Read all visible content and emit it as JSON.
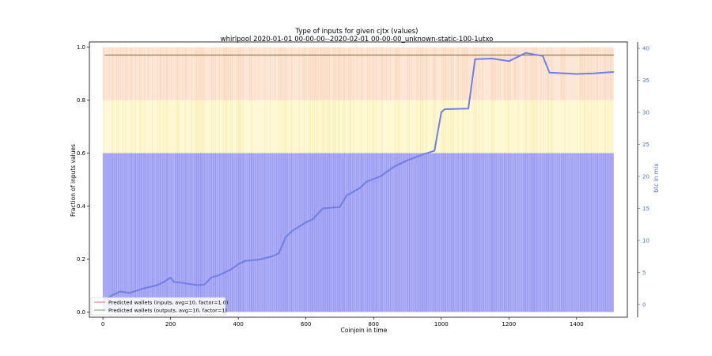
{
  "chart_data": {
    "type": "line",
    "title": "Type of inputs for given cjtx (values)",
    "subtitle": "whirlpool 2020-01-01 00-00-00--2020-02-01 00-00-00_unknown-static-100-1utxo",
    "xlabel": "Coinjoin in time",
    "ylabel_left": "Fraction of inputs values",
    "ylabel_right": "btc in mix",
    "xlim": [
      -40,
      1550
    ],
    "ylim_left": [
      -0.02,
      1.02
    ],
    "ylim_right": [
      -2,
      41
    ],
    "x_ticks": [
      0,
      200,
      400,
      600,
      800,
      1000,
      1200,
      1400
    ],
    "y_ticks_left": [
      0.0,
      0.2,
      0.4,
      0.6,
      0.8,
      1.0
    ],
    "y_ticks_right": [
      0,
      5,
      10,
      15,
      20,
      25,
      30,
      35,
      40
    ],
    "bands": [
      {
        "from": 0.0,
        "to": 0.6,
        "color": "#7777f0"
      },
      {
        "from": 0.6,
        "to": 0.8,
        "color": "#fff3b0"
      },
      {
        "from": 0.8,
        "to": 1.0,
        "color": "#f7b98c"
      }
    ],
    "x_range_bars": [
      0,
      1510
    ],
    "flat_line": {
      "value": 0.97,
      "x": [
        5,
        1510
      ],
      "color": "#8b5a2b"
    },
    "btc_in_mix": {
      "color": "#6f7fe8",
      "x": [
        0,
        30,
        50,
        80,
        120,
        160,
        180,
        200,
        210,
        230,
        280,
        300,
        320,
        340,
        380,
        400,
        420,
        460,
        500,
        520,
        540,
        560,
        600,
        620,
        650,
        700,
        720,
        760,
        780,
        820,
        860,
        900,
        950,
        980,
        1000,
        1010,
        1080,
        1090,
        1100,
        1150,
        1200,
        1250,
        1280,
        1300,
        1320,
        1400,
        1450,
        1510
      ],
      "y": [
        0.5,
        1.5,
        2.0,
        1.8,
        2.5,
        3.0,
        3.5,
        4.2,
        3.5,
        3.4,
        3.0,
        3.1,
        4.2,
        4.5,
        5.5,
        6.3,
        6.8,
        7.0,
        7.5,
        8.0,
        10.5,
        11.5,
        12.8,
        13.3,
        15.0,
        15.2,
        17.0,
        18.2,
        19.2,
        20.0,
        21.5,
        22.5,
        23.5,
        24.0,
        30.0,
        30.5,
        30.6,
        34.5,
        38.3,
        38.4,
        38.0,
        39.3,
        39.0,
        38.8,
        36.2,
        36.0,
        36.1,
        36.3
      ]
    },
    "legend": {
      "placement": "lower-left",
      "entries": [
        {
          "label": "Predicted wallets (inputs, avg=10, factor=1.0)",
          "color": "#e8827f"
        },
        {
          "label": "Predicted wallets (outputs, avg=10, factor=1)",
          "color": "#7fb870"
        }
      ]
    }
  }
}
